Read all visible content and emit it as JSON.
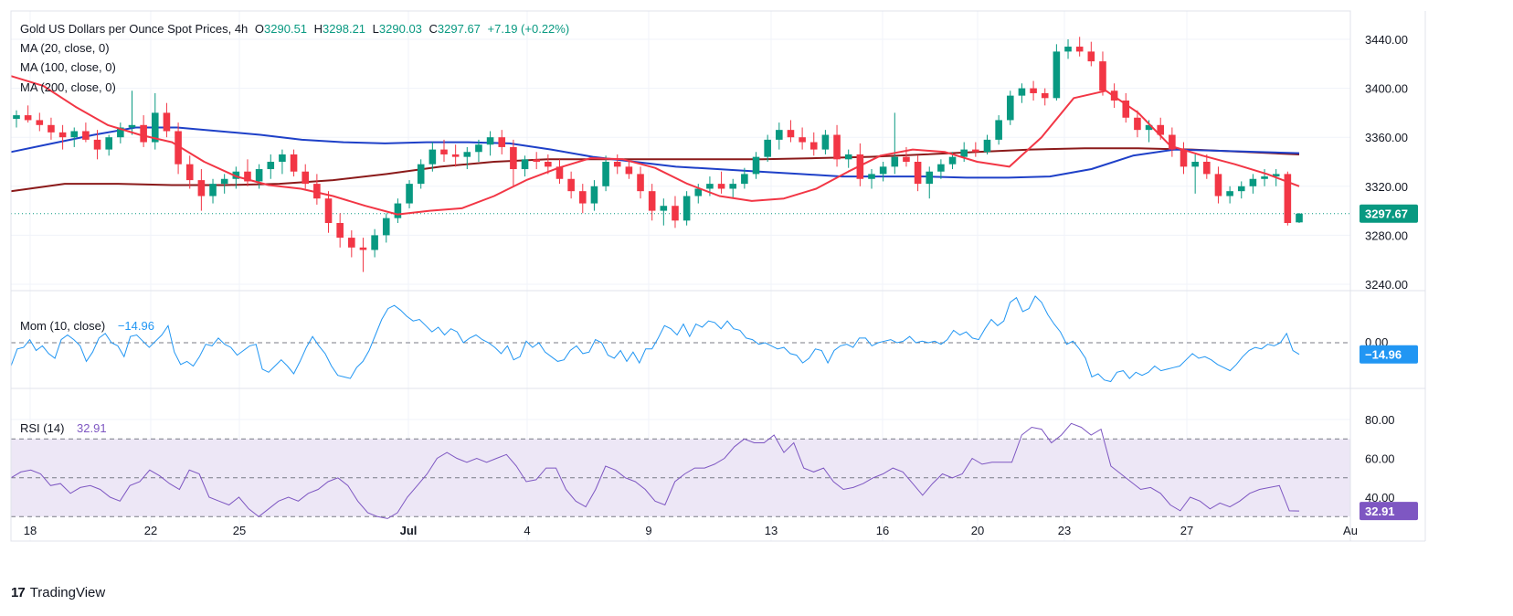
{
  "header": {
    "title": "Gold US Dollars per Ounce Spot Prices, 4h",
    "o_label": "O",
    "o_value": "3290.51",
    "h_label": "H",
    "h_value": "3298.21",
    "l_label": "L",
    "l_value": "3290.03",
    "c_label": "C",
    "c_value": "3297.67",
    "change": "+7.19 (+0.22%)"
  },
  "legends": {
    "ma20": "MA (20, close, 0)",
    "ma100": "MA (100, close, 0)",
    "ma200": "MA (200, close, 0)",
    "mom_label": "Mom (10, close)",
    "mom_value": "−14.96",
    "rsi_label": "RSI (14)",
    "rsi_value": "32.91"
  },
  "tags": {
    "price": "3297.67",
    "mom": "−14.96",
    "rsi": "32.91"
  },
  "brand": {
    "name": "TradingView",
    "logo": "17"
  },
  "colors": {
    "up": "#089981",
    "down": "#f23645",
    "ma20": "#f23645",
    "ma100": "#1e40c8",
    "ma200": "#8b1a1a",
    "mom": "#2196f3",
    "rsi": "#7e57c2",
    "rsi_band": "#ede7f6"
  },
  "chart_data": [
    {
      "type": "candlestick",
      "title": "Gold US Dollars per Ounce Spot Prices, 4h",
      "x_ticks": [
        "18",
        "22",
        "25",
        "Jul",
        "4",
        "9",
        "13",
        "16",
        "20",
        "23",
        "27",
        "Au"
      ],
      "y_ticks": [
        "3240.00",
        "3280.00",
        "3320.00",
        "3360.00",
        "3400.00",
        "3440.00"
      ],
      "ylim": [
        3222,
        3452
      ],
      "series": [
        {
          "name": "MA (20, close, 0)",
          "values": [
            3410,
            3402,
            3385,
            3370,
            3362,
            3356,
            3340,
            3328,
            3321,
            3318,
            3312,
            3304,
            3297,
            3300,
            3302,
            3312,
            3325,
            3335,
            3343,
            3342,
            3335,
            3322,
            3312,
            3308,
            3310,
            3318,
            3332,
            3345,
            3350,
            3348,
            3340,
            3336,
            3360,
            3392,
            3398,
            3380,
            3353,
            3345,
            3338,
            3330,
            3320
          ]
        },
        {
          "name": "MA (100, close, 0)",
          "values": [
            3348,
            3355,
            3362,
            3368,
            3368,
            3365,
            3362,
            3358,
            3356,
            3355,
            3356,
            3356,
            3355,
            3350,
            3344,
            3340,
            3336,
            3334,
            3332,
            3330,
            3328,
            3328,
            3328,
            3327,
            3327,
            3328,
            3334,
            3345,
            3350,
            3349,
            3348,
            3347
          ]
        },
        {
          "name": "MA (200, close, 0)",
          "values": [
            3316,
            3322,
            3322,
            3321,
            3321,
            3322,
            3325,
            3330,
            3336,
            3340,
            3342,
            3342,
            3342,
            3342,
            3342,
            3343,
            3344,
            3346,
            3348,
            3350,
            3351,
            3351,
            3350,
            3348,
            3346
          ]
        }
      ],
      "candles": [
        [
          3375,
          3382,
          3368,
          3378
        ],
        [
          3378,
          3386,
          3372,
          3374
        ],
        [
          3374,
          3380,
          3365,
          3370
        ],
        [
          3370,
          3376,
          3358,
          3364
        ],
        [
          3364,
          3370,
          3350,
          3360
        ],
        [
          3360,
          3368,
          3352,
          3365
        ],
        [
          3365,
          3372,
          3356,
          3358
        ],
        [
          3358,
          3366,
          3342,
          3350
        ],
        [
          3350,
          3362,
          3345,
          3360
        ],
        [
          3360,
          3372,
          3355,
          3368
        ],
        [
          3368,
          3398,
          3362,
          3370
        ],
        [
          3370,
          3378,
          3352,
          3356
        ],
        [
          3356,
          3396,
          3350,
          3380
        ],
        [
          3380,
          3388,
          3360,
          3365
        ],
        [
          3365,
          3372,
          3330,
          3338
        ],
        [
          3338,
          3345,
          3318,
          3325
        ],
        [
          3325,
          3334,
          3300,
          3312
        ],
        [
          3312,
          3326,
          3306,
          3322
        ],
        [
          3322,
          3330,
          3314,
          3326
        ],
        [
          3326,
          3336,
          3318,
          3332
        ],
        [
          3332,
          3342,
          3320,
          3324
        ],
        [
          3324,
          3338,
          3318,
          3334
        ],
        [
          3334,
          3346,
          3326,
          3340
        ],
        [
          3340,
          3350,
          3330,
          3346
        ],
        [
          3346,
          3350,
          3328,
          3332
        ],
        [
          3332,
          3338,
          3318,
          3322
        ],
        [
          3322,
          3330,
          3305,
          3310
        ],
        [
          3310,
          3316,
          3282,
          3290
        ],
        [
          3290,
          3298,
          3270,
          3278
        ],
        [
          3278,
          3284,
          3262,
          3270
        ],
        [
          3270,
          3278,
          3250,
          3268
        ],
        [
          3268,
          3285,
          3262,
          3280
        ],
        [
          3280,
          3298,
          3274,
          3294
        ],
        [
          3294,
          3310,
          3290,
          3306
        ],
        [
          3306,
          3325,
          3302,
          3322
        ],
        [
          3322,
          3342,
          3318,
          3338
        ],
        [
          3338,
          3356,
          3332,
          3350
        ],
        [
          3350,
          3358,
          3340,
          3346
        ],
        [
          3346,
          3354,
          3336,
          3344
        ],
        [
          3344,
          3352,
          3334,
          3348
        ],
        [
          3348,
          3358,
          3340,
          3354
        ],
        [
          3354,
          3365,
          3345,
          3360
        ],
        [
          3360,
          3366,
          3346,
          3352
        ],
        [
          3352,
          3358,
          3320,
          3334
        ],
        [
          3334,
          3345,
          3328,
          3342
        ],
        [
          3342,
          3348,
          3334,
          3340
        ],
        [
          3340,
          3346,
          3330,
          3336
        ],
        [
          3336,
          3342,
          3322,
          3326
        ],
        [
          3326,
          3332,
          3310,
          3316
        ],
        [
          3316,
          3322,
          3298,
          3306
        ],
        [
          3306,
          3325,
          3300,
          3320
        ],
        [
          3320,
          3345,
          3316,
          3340
        ],
        [
          3340,
          3346,
          3330,
          3336
        ],
        [
          3336,
          3340,
          3326,
          3330
        ],
        [
          3330,
          3336,
          3310,
          3316
        ],
        [
          3316,
          3322,
          3292,
          3300
        ],
        [
          3300,
          3310,
          3288,
          3304
        ],
        [
          3304,
          3312,
          3286,
          3292
        ],
        [
          3292,
          3316,
          3288,
          3312
        ],
        [
          3312,
          3322,
          3306,
          3318
        ],
        [
          3318,
          3328,
          3312,
          3322
        ],
        [
          3322,
          3332,
          3314,
          3318
        ],
        [
          3318,
          3326,
          3310,
          3322
        ],
        [
          3322,
          3335,
          3318,
          3330
        ],
        [
          3330,
          3348,
          3326,
          3344
        ],
        [
          3344,
          3362,
          3340,
          3358
        ],
        [
          3358,
          3372,
          3350,
          3366
        ],
        [
          3366,
          3374,
          3356,
          3360
        ],
        [
          3360,
          3368,
          3350,
          3356
        ],
        [
          3356,
          3364,
          3345,
          3350
        ],
        [
          3350,
          3366,
          3346,
          3362
        ],
        [
          3362,
          3370,
          3336,
          3342
        ],
        [
          3342,
          3350,
          3335,
          3346
        ],
        [
          3346,
          3355,
          3320,
          3326
        ],
        [
          3326,
          3334,
          3318,
          3330
        ],
        [
          3330,
          3340,
          3324,
          3336
        ],
        [
          3336,
          3380,
          3330,
          3344
        ],
        [
          3344,
          3352,
          3336,
          3340
        ],
        [
          3340,
          3345,
          3316,
          3322
        ],
        [
          3322,
          3336,
          3310,
          3332
        ],
        [
          3332,
          3342,
          3326,
          3338
        ],
        [
          3338,
          3348,
          3334,
          3344
        ],
        [
          3344,
          3356,
          3340,
          3350
        ],
        [
          3350,
          3356,
          3344,
          3348
        ],
        [
          3348,
          3362,
          3346,
          3358
        ],
        [
          3358,
          3378,
          3354,
          3374
        ],
        [
          3374,
          3398,
          3370,
          3394
        ],
        [
          3394,
          3404,
          3388,
          3400
        ],
        [
          3400,
          3406,
          3390,
          3396
        ],
        [
          3396,
          3400,
          3386,
          3392
        ],
        [
          3392,
          3436,
          3390,
          3430
        ],
        [
          3430,
          3440,
          3424,
          3434
        ],
        [
          3434,
          3442,
          3426,
          3430
        ],
        [
          3430,
          3438,
          3418,
          3422
        ],
        [
          3422,
          3430,
          3394,
          3398
        ],
        [
          3398,
          3404,
          3384,
          3390
        ],
        [
          3390,
          3396,
          3372,
          3376
        ],
        [
          3376,
          3382,
          3360,
          3366
        ],
        [
          3366,
          3374,
          3356,
          3370
        ],
        [
          3370,
          3376,
          3358,
          3362
        ],
        [
          3362,
          3368,
          3344,
          3350
        ],
        [
          3350,
          3356,
          3330,
          3336
        ],
        [
          3336,
          3346,
          3314,
          3340
        ],
        [
          3340,
          3346,
          3326,
          3330
        ],
        [
          3330,
          3336,
          3306,
          3312
        ],
        [
          3312,
          3320,
          3306,
          3316
        ],
        [
          3316,
          3324,
          3310,
          3320
        ],
        [
          3320,
          3330,
          3314,
          3326
        ],
        [
          3326,
          3334,
          3320,
          3328
        ],
        [
          3328,
          3334,
          3320,
          3330
        ],
        [
          3330,
          3332,
          3288,
          3290
        ],
        [
          3290.51,
          3298.21,
          3290.03,
          3297.67
        ]
      ]
    },
    {
      "type": "line",
      "title": "Mom (10, close)",
      "last_value": -14.96,
      "reference_line": 0,
      "reference_label": "0.00",
      "ylim": [
        -62,
        62
      ],
      "values": [
        -30,
        -8,
        -6,
        4,
        -10,
        -4,
        -14,
        -20,
        4,
        10,
        4,
        -4,
        -24,
        -12,
        6,
        12,
        0,
        -4,
        -18,
        8,
        10,
        2,
        -6,
        2,
        10,
        22,
        -12,
        -28,
        -24,
        -30,
        -18,
        -2,
        -4,
        6,
        -2,
        -6,
        -16,
        -10,
        -4,
        -2,
        -34,
        -38,
        -30,
        -22,
        -30,
        -40,
        -24,
        -6,
        8,
        -4,
        -14,
        -30,
        -42,
        -44,
        -46,
        -32,
        -24,
        -10,
        10,
        30,
        44,
        48,
        42,
        34,
        28,
        30,
        22,
        14,
        20,
        10,
        18,
        14,
        0,
        6,
        10,
        4,
        0,
        -6,
        -14,
        -4,
        -22,
        -18,
        2,
        -6,
        0,
        -12,
        -18,
        -24,
        -22,
        -10,
        -4,
        -14,
        -12,
        4,
        0,
        -16,
        -20,
        -10,
        -24,
        -12,
        -26,
        -8,
        -8,
        6,
        22,
        18,
        10,
        24,
        8,
        24,
        20,
        28,
        26,
        18,
        28,
        18,
        16,
        6,
        4,
        -2,
        0,
        -4,
        -8,
        -6,
        -14,
        -16,
        -26,
        -20,
        -8,
        -10,
        -26,
        -10,
        -4,
        -2,
        -6,
        6,
        6,
        -4,
        0,
        2,
        4,
        0,
        2,
        8,
        0,
        2,
        0,
        2,
        -2,
        4,
        16,
        10,
        14,
        6,
        4,
        18,
        30,
        22,
        28,
        52,
        58,
        40,
        44,
        60,
        52,
        36,
        24,
        14,
        -2,
        2,
        -8,
        -20,
        -44,
        -40,
        -48,
        -50,
        -38,
        -36,
        -46,
        -38,
        -42,
        -38,
        -30,
        -36,
        -34,
        -32,
        -30,
        -22,
        -14,
        -20,
        -18,
        -22,
        -28,
        -32,
        -36,
        -28,
        -18,
        -10,
        -6,
        -8,
        -2,
        -4,
        0,
        12,
        -10,
        -14.96
      ]
    },
    {
      "type": "line",
      "title": "RSI (14)",
      "last_value": 32.91,
      "ylim": [
        30,
        82
      ],
      "y_ticks": [
        "40.00",
        "60.00",
        "80.00"
      ],
      "band": [
        30,
        70
      ],
      "midline": 50,
      "values": [
        50,
        53,
        54,
        52,
        46,
        47,
        42,
        45,
        46,
        44,
        40,
        38,
        46,
        48,
        54,
        51,
        47,
        44,
        54,
        52,
        40,
        38,
        36,
        40,
        34,
        30,
        34,
        38,
        40,
        38,
        42,
        44,
        48,
        50,
        46,
        38,
        32,
        30,
        29,
        32,
        40,
        46,
        52,
        60,
        63,
        60,
        58,
        60,
        58,
        60,
        62,
        56,
        48,
        49,
        55,
        55,
        44,
        38,
        35,
        44,
        56,
        54,
        50,
        48,
        44,
        38,
        36,
        48,
        52,
        55,
        55,
        57,
        60,
        66,
        70,
        68,
        68,
        72,
        63,
        68,
        55,
        53,
        55,
        48,
        44,
        45,
        47,
        50,
        52,
        55,
        53,
        47,
        41,
        47,
        52,
        50,
        52,
        60,
        57,
        58,
        58,
        58,
        72,
        76,
        75,
        68,
        72,
        78,
        76,
        72,
        75,
        56,
        52,
        48,
        44,
        45,
        42,
        36,
        33,
        40,
        38,
        34,
        37,
        35,
        38,
        42,
        44,
        45,
        46,
        33,
        32.91
      ]
    }
  ]
}
